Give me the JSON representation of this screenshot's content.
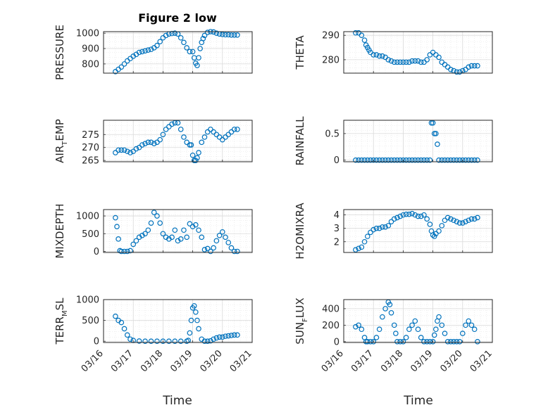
{
  "figure_title": "Figure 2 low",
  "colors": {
    "marker": "#0072BD",
    "axis": "#262626",
    "grid": "#d9d9d9"
  },
  "x_ticks": [
    "03/16",
    "03/17",
    "03/18",
    "03/19",
    "03/20",
    "03/21"
  ],
  "x_label": "Time",
  "chart_data": [
    {
      "type": "scatter",
      "id": "pressure",
      "ylabel": "PRESSURE",
      "xlim": [
        0,
        5
      ],
      "ylim": [
        740,
        1010
      ],
      "yticks": [
        800,
        900,
        1000
      ],
      "grid": true,
      "minor_grid": true,
      "x": [
        0.4,
        0.5,
        0.6,
        0.7,
        0.8,
        0.9,
        1.0,
        1.1,
        1.2,
        1.3,
        1.4,
        1.5,
        1.6,
        1.7,
        1.8,
        1.9,
        2.0,
        2.1,
        2.2,
        2.3,
        2.4,
        2.5,
        2.6,
        2.7,
        2.8,
        2.9,
        3.0,
        3.05,
        3.1,
        3.15,
        3.2,
        3.25,
        3.3,
        3.35,
        3.4,
        3.5,
        3.6,
        3.7,
        3.8,
        3.9,
        4.0,
        4.1,
        4.2,
        4.3,
        4.4,
        4.5
      ],
      "y": [
        750,
        765,
        780,
        800,
        820,
        835,
        850,
        862,
        875,
        880,
        885,
        890,
        895,
        905,
        920,
        945,
        970,
        985,
        995,
        998,
        1000,
        995,
        970,
        940,
        905,
        880,
        880,
        840,
        805,
        790,
        840,
        900,
        940,
        965,
        985,
        1005,
        1010,
        1008,
        1000,
        995,
        992,
        990,
        990,
        988,
        988,
        988
      ]
    },
    {
      "type": "scatter",
      "id": "theta",
      "ylabel": "THETA",
      "xlim": [
        0,
        5
      ],
      "ylim": [
        274.5,
        291.5
      ],
      "yticks": [
        280,
        290
      ],
      "grid": true,
      "minor_grid": true,
      "x": [
        0.4,
        0.5,
        0.6,
        0.7,
        0.75,
        0.8,
        0.85,
        0.9,
        1.0,
        1.1,
        1.2,
        1.3,
        1.4,
        1.5,
        1.6,
        1.7,
        1.8,
        1.9,
        2.0,
        2.1,
        2.2,
        2.3,
        2.4,
        2.5,
        2.6,
        2.7,
        2.8,
        2.9,
        3.0,
        3.1,
        3.2,
        3.3,
        3.4,
        3.5,
        3.6,
        3.7,
        3.8,
        3.9,
        4.0,
        4.1,
        4.2,
        4.3,
        4.4,
        4.5
      ],
      "y": [
        291,
        291,
        290,
        288,
        286,
        285,
        284,
        283,
        282,
        282,
        281.5,
        281.5,
        281,
        280,
        279.5,
        279,
        279,
        279,
        279,
        279,
        279,
        279.5,
        279.5,
        279.5,
        279,
        279,
        280,
        282,
        283,
        282,
        281,
        279,
        278,
        277,
        276,
        275.5,
        275,
        275,
        275.5,
        276,
        277,
        277.5,
        277.5,
        277.5
      ]
    },
    {
      "type": "scatter",
      "id": "air_temp",
      "ylabel": "AIR_TEMP",
      "xlim": [
        0,
        5
      ],
      "ylim": [
        264.5,
        280.5
      ],
      "yticks": [
        265,
        270,
        275
      ],
      "grid": true,
      "minor_grid": true,
      "x": [
        0.4,
        0.5,
        0.6,
        0.7,
        0.8,
        0.9,
        1.0,
        1.1,
        1.2,
        1.3,
        1.4,
        1.5,
        1.6,
        1.7,
        1.8,
        1.9,
        2.0,
        2.1,
        2.2,
        2.3,
        2.4,
        2.5,
        2.6,
        2.7,
        2.8,
        2.9,
        2.95,
        3.0,
        3.05,
        3.1,
        3.15,
        3.2,
        3.3,
        3.4,
        3.5,
        3.6,
        3.7,
        3.8,
        3.9,
        4.0,
        4.1,
        4.2,
        4.3,
        4.4,
        4.5
      ],
      "y": [
        268,
        269,
        269,
        269,
        268.5,
        268,
        268.5,
        269.5,
        270,
        271,
        271.5,
        272,
        272,
        271.5,
        272,
        273,
        275,
        277,
        278,
        279,
        279.5,
        279.5,
        277,
        274,
        272,
        271,
        271,
        267,
        265,
        265,
        266,
        268,
        272,
        274,
        276,
        277,
        276,
        275,
        274,
        273,
        274,
        275,
        276,
        277,
        277
      ]
    },
    {
      "type": "scatter",
      "id": "rainfall",
      "ylabel": "RAINFALL",
      "xlim": [
        0,
        5
      ],
      "ylim": [
        -0.03,
        0.75
      ],
      "yticks": [
        0,
        0.5
      ],
      "grid": true,
      "minor_grid": true,
      "x": [
        0.4,
        0.5,
        0.6,
        0.7,
        0.8,
        0.9,
        1.0,
        1.1,
        1.2,
        1.3,
        1.4,
        1.5,
        1.6,
        1.7,
        1.8,
        1.9,
        2.0,
        2.1,
        2.2,
        2.3,
        2.4,
        2.5,
        2.6,
        2.7,
        2.8,
        2.9,
        2.95,
        3.0,
        3.05,
        3.1,
        3.15,
        3.2,
        3.3,
        3.4,
        3.5,
        3.6,
        3.7,
        3.8,
        3.9,
        4.0,
        4.1,
        4.2,
        4.3,
        4.4,
        4.5
      ],
      "y": [
        0,
        0,
        0,
        0,
        0,
        0,
        0,
        0,
        0,
        0,
        0,
        0,
        0,
        0,
        0,
        0,
        0,
        0,
        0,
        0,
        0,
        0,
        0,
        0,
        0,
        0,
        0.7,
        0.7,
        0.5,
        0.5,
        0.3,
        0,
        0,
        0,
        0,
        0,
        0,
        0,
        0,
        0,
        0,
        0,
        0,
        0,
        0
      ]
    },
    {
      "type": "scatter",
      "id": "mixdepth",
      "ylabel": "MIXDEPTH",
      "xlim": [
        0,
        5
      ],
      "ylim": [
        -30,
        1180
      ],
      "yticks": [
        0,
        500,
        1000
      ],
      "grid": true,
      "minor_grid": true,
      "x": [
        0.4,
        0.45,
        0.5,
        0.55,
        0.6,
        0.7,
        0.8,
        0.9,
        1.0,
        1.1,
        1.2,
        1.3,
        1.4,
        1.5,
        1.6,
        1.7,
        1.8,
        1.9,
        2.0,
        2.1,
        2.2,
        2.3,
        2.4,
        2.5,
        2.6,
        2.7,
        2.8,
        2.9,
        3.0,
        3.1,
        3.2,
        3.3,
        3.4,
        3.5,
        3.6,
        3.7,
        3.8,
        3.9,
        4.0,
        4.1,
        4.2,
        4.3,
        4.4,
        4.5
      ],
      "y": [
        950,
        700,
        350,
        20,
        0,
        0,
        0,
        20,
        200,
        300,
        400,
        450,
        500,
        600,
        800,
        1100,
        1000,
        800,
        500,
        400,
        350,
        400,
        600,
        300,
        350,
        600,
        400,
        780,
        700,
        750,
        600,
        400,
        50,
        80,
        0,
        100,
        300,
        450,
        550,
        400,
        250,
        100,
        0,
        0
      ]
    },
    {
      "type": "scatter",
      "id": "h2omixra",
      "ylabel": "H2OMIXRA",
      "xlim": [
        0,
        5
      ],
      "ylim": [
        1.2,
        4.4
      ],
      "yticks": [
        2,
        3,
        4
      ],
      "grid": true,
      "minor_grid": true,
      "x": [
        0.4,
        0.5,
        0.6,
        0.7,
        0.8,
        0.9,
        1.0,
        1.1,
        1.2,
        1.3,
        1.4,
        1.5,
        1.6,
        1.7,
        1.8,
        1.9,
        2.0,
        2.1,
        2.2,
        2.3,
        2.4,
        2.5,
        2.6,
        2.7,
        2.8,
        2.9,
        2.95,
        3.0,
        3.05,
        3.1,
        3.2,
        3.3,
        3.4,
        3.5,
        3.6,
        3.7,
        3.8,
        3.9,
        4.0,
        4.1,
        4.2,
        4.3,
        4.4,
        4.5
      ],
      "y": [
        1.4,
        1.5,
        1.6,
        2.0,
        2.4,
        2.7,
        2.9,
        3.0,
        3.0,
        3.1,
        3.1,
        3.2,
        3.5,
        3.7,
        3.8,
        3.9,
        4.0,
        4.05,
        4.05,
        4.1,
        4.0,
        3.9,
        3.9,
        4.0,
        3.7,
        3.3,
        2.8,
        2.5,
        2.4,
        2.6,
        2.8,
        3.2,
        3.6,
        3.8,
        3.7,
        3.6,
        3.5,
        3.4,
        3.4,
        3.5,
        3.6,
        3.7,
        3.7,
        3.8
      ]
    },
    {
      "type": "scatter",
      "id": "terr_msl",
      "ylabel": "TERR_MSL",
      "xlim": [
        0,
        5
      ],
      "ylim": [
        -30,
        1000
      ],
      "yticks": [
        0,
        500,
        1000
      ],
      "grid": true,
      "minor_grid": true,
      "x": [
        0.4,
        0.5,
        0.6,
        0.7,
        0.8,
        0.9,
        1.0,
        1.2,
        1.4,
        1.6,
        1.8,
        2.0,
        2.2,
        2.4,
        2.6,
        2.8,
        2.85,
        2.9,
        2.95,
        3.0,
        3.05,
        3.1,
        3.15,
        3.2,
        3.3,
        3.4,
        3.5,
        3.6,
        3.7,
        3.8,
        3.9,
        4.0,
        4.1,
        4.2,
        4.3,
        4.4,
        4.5
      ],
      "y": [
        600,
        500,
        450,
        300,
        150,
        50,
        20,
        5,
        0,
        0,
        0,
        0,
        0,
        0,
        0,
        0,
        20,
        200,
        500,
        800,
        850,
        700,
        500,
        300,
        50,
        0,
        0,
        10,
        50,
        80,
        100,
        100,
        120,
        130,
        140,
        150,
        150
      ]
    },
    {
      "type": "scatter",
      "id": "sun_flux",
      "ylabel": "SUN_FLUX",
      "xlim": [
        0,
        5
      ],
      "ylim": [
        -10,
        510
      ],
      "yticks": [
        0,
        200,
        400
      ],
      "grid": true,
      "minor_grid": true,
      "x": [
        0.4,
        0.5,
        0.6,
        0.7,
        0.75,
        0.8,
        0.9,
        1.0,
        1.1,
        1.2,
        1.3,
        1.4,
        1.5,
        1.55,
        1.6,
        1.7,
        1.75,
        1.8,
        1.9,
        2.0,
        2.1,
        2.2,
        2.3,
        2.4,
        2.5,
        2.6,
        2.7,
        2.8,
        2.9,
        3.0,
        3.05,
        3.1,
        3.15,
        3.2,
        3.3,
        3.4,
        3.5,
        3.6,
        3.7,
        3.8,
        3.9,
        4.0,
        4.1,
        4.2,
        4.3,
        4.4,
        4.5
      ],
      "y": [
        180,
        200,
        150,
        50,
        0,
        0,
        0,
        0,
        50,
        150,
        300,
        400,
        480,
        450,
        350,
        200,
        100,
        0,
        0,
        0,
        50,
        150,
        200,
        250,
        150,
        50,
        0,
        0,
        0,
        0,
        80,
        150,
        250,
        300,
        200,
        100,
        0,
        0,
        0,
        0,
        0,
        100,
        200,
        250,
        200,
        150,
        0
      ]
    }
  ]
}
